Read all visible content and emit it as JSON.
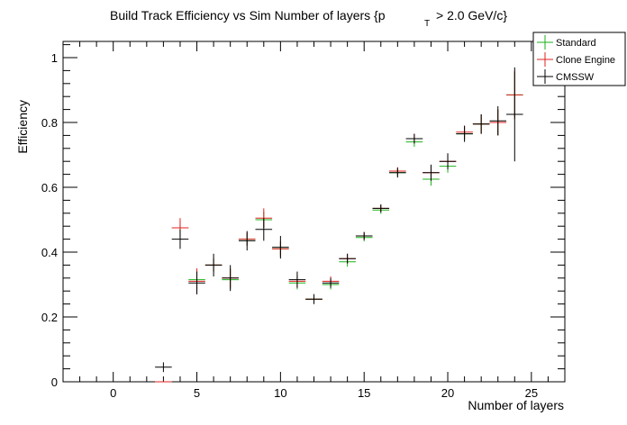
{
  "chart_data": {
    "type": "scatter",
    "title": {
      "main": "Build Track Efficiency vs Sim Number of layers {p",
      "subscript": "T",
      "rest": "> 2.0 GeV/c}"
    },
    "xlabel": "Number of layers",
    "ylabel": "Efficiency",
    "xlim": [
      -3,
      27
    ],
    "ylim": [
      0,
      1.05
    ],
    "x_major_ticks": [
      0,
      5,
      10,
      15,
      20,
      25
    ],
    "x_tick_labels": [
      "0",
      "5",
      "10",
      "15",
      "20",
      "25"
    ],
    "y_major_ticks": [
      0,
      0.2,
      0.4,
      0.6,
      0.8,
      1
    ],
    "y_tick_labels": [
      "0",
      "0.2",
      "0.4",
      "0.6",
      "0.8",
      "1"
    ],
    "x_bin_halfwidth": 0.5,
    "legend_position": "top-right",
    "series": [
      {
        "name": "Standard",
        "color": "#19b219",
        "points": [
          {
            "x": 3,
            "y": 0.0,
            "err": 0.0
          },
          {
            "x": 4,
            "y": 0.475,
            "err": 0.02
          },
          {
            "x": 5,
            "y": 0.315,
            "err": 0.03
          },
          {
            "x": 6,
            "y": 0.36,
            "err": 0.02
          },
          {
            "x": 7,
            "y": 0.315,
            "err": 0.03
          },
          {
            "x": 8,
            "y": 0.44,
            "err": 0.02
          },
          {
            "x": 9,
            "y": 0.5,
            "err": 0.025
          },
          {
            "x": 10,
            "y": 0.41,
            "err": 0.02
          },
          {
            "x": 11,
            "y": 0.305,
            "err": 0.02
          },
          {
            "x": 12,
            "y": 0.255,
            "err": 0.015
          },
          {
            "x": 13,
            "y": 0.3,
            "err": 0.015
          },
          {
            "x": 14,
            "y": 0.37,
            "err": 0.015
          },
          {
            "x": 15,
            "y": 0.445,
            "err": 0.012
          },
          {
            "x": 16,
            "y": 0.53,
            "err": 0.012
          },
          {
            "x": 17,
            "y": 0.645,
            "err": 0.012
          },
          {
            "x": 18,
            "y": 0.74,
            "err": 0.015
          },
          {
            "x": 19,
            "y": 0.625,
            "err": 0.02
          },
          {
            "x": 20,
            "y": 0.665,
            "err": 0.02
          },
          {
            "x": 21,
            "y": 0.765,
            "err": 0.02
          },
          {
            "x": 22,
            "y": 0.795,
            "err": 0.03
          },
          {
            "x": 23,
            "y": 0.8,
            "err": 0.04
          },
          {
            "x": 24,
            "y": 0.885,
            "err": 0.07
          }
        ]
      },
      {
        "name": "Clone Engine",
        "color": "#e02020",
        "points": [
          {
            "x": 3,
            "y": 0.0,
            "err": 0.0
          },
          {
            "x": 4,
            "y": 0.475,
            "err": 0.03
          },
          {
            "x": 5,
            "y": 0.31,
            "err": 0.04
          },
          {
            "x": 6,
            "y": 0.36,
            "err": 0.02
          },
          {
            "x": 7,
            "y": 0.32,
            "err": 0.03
          },
          {
            "x": 8,
            "y": 0.44,
            "err": 0.02
          },
          {
            "x": 9,
            "y": 0.505,
            "err": 0.03
          },
          {
            "x": 10,
            "y": 0.41,
            "err": 0.025
          },
          {
            "x": 11,
            "y": 0.31,
            "err": 0.02
          },
          {
            "x": 12,
            "y": 0.255,
            "err": 0.015
          },
          {
            "x": 13,
            "y": 0.31,
            "err": 0.015
          },
          {
            "x": 14,
            "y": 0.38,
            "err": 0.015
          },
          {
            "x": 15,
            "y": 0.45,
            "err": 0.012
          },
          {
            "x": 16,
            "y": 0.535,
            "err": 0.012
          },
          {
            "x": 17,
            "y": 0.65,
            "err": 0.012
          },
          {
            "x": 18,
            "y": 0.75,
            "err": 0.015
          },
          {
            "x": 19,
            "y": 0.645,
            "err": 0.02
          },
          {
            "x": 20,
            "y": 0.68,
            "err": 0.02
          },
          {
            "x": 21,
            "y": 0.77,
            "err": 0.02
          },
          {
            "x": 22,
            "y": 0.795,
            "err": 0.03
          },
          {
            "x": 23,
            "y": 0.8,
            "err": 0.04
          },
          {
            "x": 24,
            "y": 0.885,
            "err": 0.075
          }
        ]
      },
      {
        "name": "CMSSW",
        "color": "#000000",
        "points": [
          {
            "x": 3,
            "y": 0.045,
            "err": 0.015
          },
          {
            "x": 4,
            "y": 0.44,
            "err": 0.03
          },
          {
            "x": 5,
            "y": 0.305,
            "err": 0.035
          },
          {
            "x": 6,
            "y": 0.36,
            "err": 0.035
          },
          {
            "x": 7,
            "y": 0.32,
            "err": 0.04
          },
          {
            "x": 8,
            "y": 0.435,
            "err": 0.03
          },
          {
            "x": 9,
            "y": 0.47,
            "err": 0.035
          },
          {
            "x": 10,
            "y": 0.415,
            "err": 0.035
          },
          {
            "x": 11,
            "y": 0.315,
            "err": 0.025
          },
          {
            "x": 12,
            "y": 0.255,
            "err": 0.015
          },
          {
            "x": 13,
            "y": 0.305,
            "err": 0.015
          },
          {
            "x": 14,
            "y": 0.38,
            "err": 0.015
          },
          {
            "x": 15,
            "y": 0.45,
            "err": 0.012
          },
          {
            "x": 16,
            "y": 0.535,
            "err": 0.012
          },
          {
            "x": 17,
            "y": 0.645,
            "err": 0.015
          },
          {
            "x": 18,
            "y": 0.75,
            "err": 0.015
          },
          {
            "x": 19,
            "y": 0.645,
            "err": 0.025
          },
          {
            "x": 20,
            "y": 0.68,
            "err": 0.025
          },
          {
            "x": 21,
            "y": 0.765,
            "err": 0.025
          },
          {
            "x": 22,
            "y": 0.795,
            "err": 0.03
          },
          {
            "x": 23,
            "y": 0.805,
            "err": 0.045
          },
          {
            "x": 24,
            "y": 0.825,
            "err": 0.145
          }
        ]
      }
    ]
  }
}
